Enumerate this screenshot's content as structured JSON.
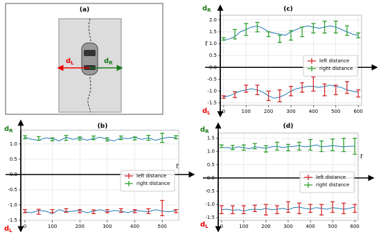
{
  "diagram": {
    "title": "(a)",
    "left_label": {
      "main": "d",
      "sub": "L"
    },
    "right_label": {
      "main": "d",
      "sub": "R"
    }
  },
  "chart_data": [
    {
      "type": "line",
      "title": "(b)",
      "grid": true,
      "legend": "center right",
      "x_label": "t",
      "y_top_label": {
        "main": "d",
        "sub": "R"
      },
      "y_bottom_label": {
        "main": "d",
        "sub": "L"
      },
      "xlim": [
        -15,
        560
      ],
      "xticks": [
        0,
        100,
        200,
        300,
        400,
        500
      ],
      "ylim": [
        -1.5,
        1.45
      ],
      "yticks": [
        -1.5,
        {
          "value": -1,
          "label": "-1.0"
        },
        -0.5,
        {
          "value": 0,
          "label": "0.0"
        },
        0.5,
        {
          "value": 1,
          "label": "1.0"
        }
      ],
      "series": [
        {
          "color": "#1f77b4",
          "x": [
            0,
            25,
            50,
            75,
            100,
            125,
            150,
            175,
            200,
            225,
            250,
            275,
            300,
            325,
            350,
            375,
            400,
            425,
            450,
            475,
            500,
            525,
            550
          ],
          "values": [
            1.22,
            1.15,
            1.12,
            1.2,
            1.18,
            1.1,
            1.22,
            1.15,
            1.2,
            1.12,
            1.18,
            1.22,
            1.15,
            1.1,
            1.2,
            1.17,
            1.22,
            1.15,
            1.2,
            1.12,
            1.18,
            1.22,
            1.2
          ]
        },
        {
          "color": "#1f77b4",
          "x": [
            0,
            25,
            50,
            75,
            100,
            125,
            150,
            175,
            200,
            225,
            250,
            275,
            300,
            325,
            350,
            375,
            400,
            425,
            450,
            475,
            500,
            525,
            550
          ],
          "values": [
            -1.22,
            -1.25,
            -1.18,
            -1.2,
            -1.28,
            -1.15,
            -1.22,
            -1.2,
            -1.18,
            -1.25,
            -1.2,
            -1.15,
            -1.22,
            -1.18,
            -1.2,
            -1.25,
            -1.18,
            -1.2,
            -1.22,
            -1.15,
            -1.2,
            -1.22,
            -1.18
          ]
        },
        {
          "name": "left distance",
          "color": "#d62728",
          "x": [
            0,
            50,
            100,
            150,
            200,
            250,
            300,
            350,
            400,
            450,
            500,
            550
          ],
          "values": [
            -1.2,
            -1.22,
            -1.2,
            -1.18,
            -1.2,
            -1.22,
            -1.2,
            -1.18,
            -1.2,
            -1.2,
            -1.1,
            -1.2
          ],
          "errors": [
            0.05,
            0.08,
            0.05,
            0.06,
            0.05,
            0.06,
            0.05,
            0.06,
            0.05,
            0.08,
            0.25,
            0.05
          ]
        },
        {
          "name": "right distance",
          "color": "#2ca02c",
          "x": [
            0,
            50,
            100,
            150,
            200,
            250,
            300,
            350,
            400,
            450,
            500,
            550
          ],
          "values": [
            1.22,
            1.18,
            1.15,
            1.2,
            1.18,
            1.2,
            1.15,
            1.2,
            1.18,
            1.2,
            1.2,
            1.22
          ],
          "errors": [
            0.05,
            0.06,
            0.05,
            0.08,
            0.05,
            0.06,
            0.05,
            0.06,
            0.05,
            0.08,
            0.15,
            0.05
          ]
        }
      ]
    },
    {
      "type": "line",
      "title": "(c)",
      "grid": true,
      "legend": "center right",
      "x_label": "t",
      "y_top_label": {
        "main": "d",
        "sub": "R"
      },
      "y_bottom_label": {
        "main": "d",
        "sub": "L"
      },
      "xlim": [
        -15,
        615
      ],
      "xticks": [
        0,
        100,
        200,
        300,
        400,
        500,
        600
      ],
      "ylim": [
        -1.6,
        2.2
      ],
      "yticks": [
        -1.5,
        {
          "value": -1,
          "label": "-1.0"
        },
        -0.5,
        {
          "value": 0,
          "label": "0.0"
        },
        0.5,
        {
          "value": 1,
          "label": "1.0"
        },
        1.5,
        {
          "value": 2,
          "label": "2.0"
        }
      ],
      "series": [
        {
          "color": "#1f77b4",
          "x": [
            0,
            25,
            50,
            75,
            100,
            125,
            150,
            175,
            200,
            225,
            250,
            275,
            300,
            325,
            350,
            375,
            400,
            425,
            450,
            475,
            500,
            525,
            550,
            575,
            600
          ],
          "values": [
            1.15,
            1.2,
            1.3,
            1.5,
            1.6,
            1.7,
            1.75,
            1.65,
            1.5,
            1.45,
            1.4,
            1.35,
            1.5,
            1.6,
            1.7,
            1.75,
            1.7,
            1.65,
            1.7,
            1.75,
            1.7,
            1.6,
            1.5,
            1.4,
            1.35
          ]
        },
        {
          "color": "#1f77b4",
          "x": [
            0,
            25,
            50,
            75,
            100,
            125,
            150,
            175,
            200,
            225,
            250,
            275,
            300,
            325,
            350,
            375,
            400,
            425,
            450,
            475,
            500,
            525,
            550,
            575,
            600
          ],
          "values": [
            -1.25,
            -1.2,
            -1.1,
            -1,
            -0.95,
            -0.9,
            -0.95,
            -1.05,
            -1.2,
            -1.3,
            -1.25,
            -1.15,
            -1,
            -0.9,
            -0.85,
            -0.8,
            -0.8,
            -0.85,
            -0.8,
            -0.75,
            -0.8,
            -0.85,
            -0.95,
            -1,
            -1.05
          ]
        },
        {
          "name": "left distance",
          "color": "#d62728",
          "x": [
            0,
            50,
            100,
            150,
            200,
            250,
            300,
            350,
            400,
            450,
            500,
            550,
            600
          ],
          "values": [
            -1.25,
            -1.15,
            -0.9,
            -0.95,
            -1.2,
            -1.2,
            -1,
            -0.85,
            -0.7,
            -0.95,
            -0.95,
            -0.85,
            -1.1
          ],
          "errors": [
            0.05,
            0.12,
            0.15,
            0.2,
            0.2,
            0.25,
            0.2,
            0.2,
            0.3,
            0.25,
            0.2,
            0.25,
            0.15
          ]
        },
        {
          "name": "right distance",
          "color": "#2ca02c",
          "x": [
            0,
            50,
            100,
            150,
            200,
            250,
            300,
            350,
            400,
            450,
            500,
            550,
            600
          ],
          "values": [
            1.2,
            1.4,
            1.6,
            1.7,
            1.4,
            1.2,
            1.35,
            1.5,
            1.65,
            1.7,
            1.7,
            1.55,
            1.35
          ],
          "errors": [
            0.05,
            0.2,
            0.25,
            0.2,
            0.1,
            0.15,
            0.2,
            0.2,
            0.2,
            0.25,
            0.25,
            0.2,
            0.1
          ]
        }
      ]
    },
    {
      "type": "line",
      "title": "(d)",
      "grid": true,
      "legend": "center right",
      "x_label": "t",
      "y_top_label": {
        "main": "d",
        "sub": "R"
      },
      "y_bottom_label": {
        "main": "d",
        "sub": "L"
      },
      "xlim": [
        -15,
        615
      ],
      "xticks": [
        0,
        100,
        200,
        300,
        400,
        500,
        600
      ],
      "ylim": [
        -1.6,
        1.7
      ],
      "yticks": [
        -1.5,
        {
          "value": -1,
          "label": "-1.0"
        },
        -0.5,
        {
          "value": 0,
          "label": "0.0"
        },
        0.5,
        {
          "value": 1,
          "label": "1.0"
        },
        1.5
      ],
      "series": [
        {
          "color": "#1f77b4",
          "x": [
            0,
            25,
            50,
            75,
            100,
            125,
            150,
            175,
            200,
            225,
            250,
            275,
            300,
            325,
            350,
            375,
            400,
            425,
            450,
            475,
            500,
            525,
            550,
            575,
            600
          ],
          "values": [
            1.15,
            1.15,
            1.12,
            1.18,
            1.15,
            1.1,
            1.18,
            1.15,
            1.12,
            1.18,
            1.2,
            1.15,
            1.18,
            1.2,
            1.22,
            1.18,
            1.2,
            1.25,
            1.18,
            1.2,
            1.22,
            1.2,
            1.18,
            1.2,
            1.2
          ]
        },
        {
          "color": "#1f77b4",
          "x": [
            0,
            25,
            50,
            75,
            100,
            125,
            150,
            175,
            200,
            225,
            250,
            275,
            300,
            325,
            350,
            375,
            400,
            425,
            450,
            475,
            500,
            525,
            550,
            575,
            600
          ],
          "values": [
            -1.2,
            -1.18,
            -1.22,
            -1.2,
            -1.25,
            -1.2,
            -1.18,
            -1.2,
            -1.15,
            -1.2,
            -1.18,
            -1.15,
            -1.2,
            -1.12,
            -1.1,
            -1.15,
            -1.18,
            -1.12,
            -1.15,
            -1.18,
            -1.12,
            -1.15,
            -1.18,
            -1.15,
            -1.1
          ]
        },
        {
          "name": "left distance",
          "color": "#d62728",
          "x": [
            0,
            50,
            100,
            150,
            200,
            250,
            300,
            350,
            400,
            450,
            500,
            550,
            600
          ],
          "values": [
            -1.2,
            -1.2,
            -1.2,
            -1.15,
            -1.2,
            -1.2,
            -1.1,
            -1.15,
            -1.15,
            -1.2,
            -1.1,
            -1.15,
            -1.15
          ],
          "errors": [
            0.15,
            0.15,
            0.15,
            0.12,
            0.2,
            0.15,
            0.2,
            0.2,
            0.15,
            0.2,
            0.2,
            0.2,
            0.15
          ]
        },
        {
          "name": "right distance",
          "color": "#2ca02c",
          "x": [
            0,
            50,
            100,
            150,
            200,
            250,
            300,
            350,
            400,
            450,
            500,
            550,
            600
          ],
          "values": [
            1.2,
            1.15,
            1.15,
            1.2,
            1.1,
            1.2,
            1.15,
            1.2,
            1.25,
            1.2,
            1.25,
            1.25,
            1.2
          ],
          "errors": [
            0.05,
            0.08,
            0.1,
            0.1,
            0.12,
            0.15,
            0.12,
            0.15,
            0.2,
            0.2,
            0.22,
            0.25,
            0.3
          ]
        }
      ]
    }
  ]
}
